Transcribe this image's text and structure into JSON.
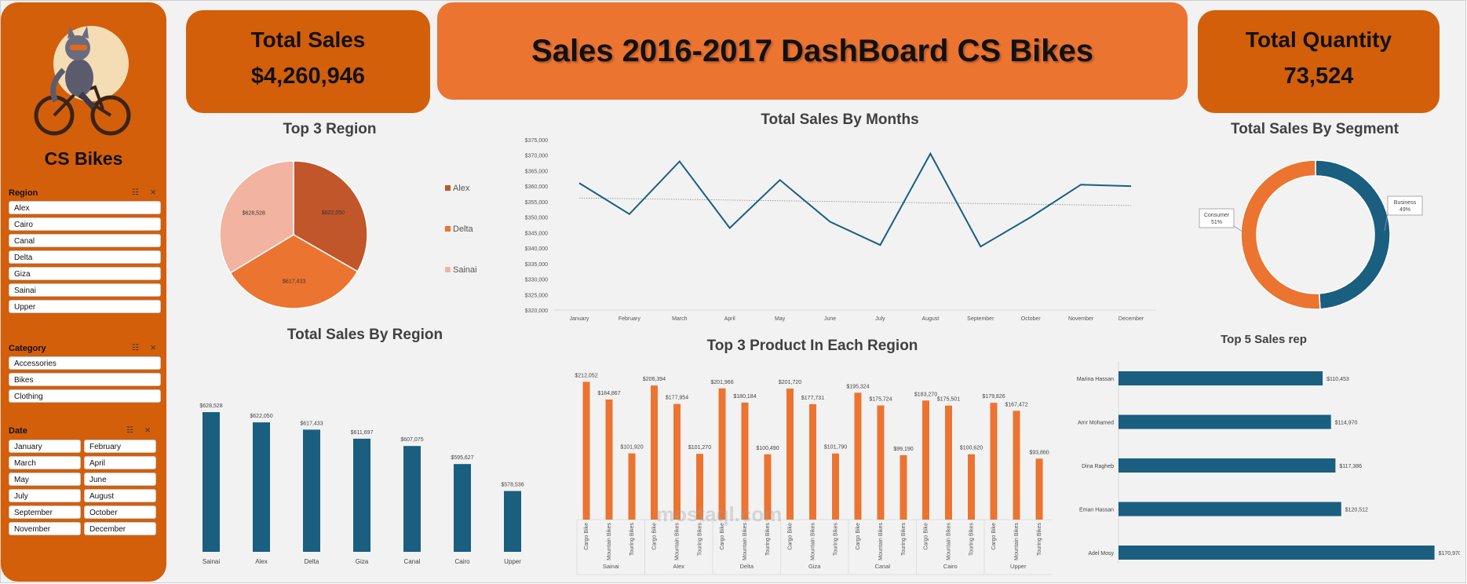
{
  "dashboard": {
    "title": "Sales 2016-2017 DashBoard CS Bikes",
    "brand": "CS Bikes",
    "watermark": "mostaql.com"
  },
  "kpis": {
    "total_sales_label": "Total Sales",
    "total_sales_value": "$4,260,946",
    "total_quantity_label": "Total Quantity",
    "total_quantity_value": "73,524"
  },
  "slicers": {
    "region": {
      "title": "Region",
      "items": [
        "Alex",
        "Cairo",
        "Canal",
        "Delta",
        "Giza",
        "Sainai",
        "Upper"
      ]
    },
    "category": {
      "title": "Category",
      "items": [
        "Accessories",
        "Bikes",
        "Clothing"
      ]
    },
    "date": {
      "title": "Date",
      "items": [
        "January",
        "February",
        "March",
        "April",
        "May",
        "June",
        "July",
        "August",
        "September",
        "October",
        "November",
        "December"
      ]
    }
  },
  "colors": {
    "orange": "#d35f0a",
    "accent": "#ec7431",
    "blue": "#1a5e80"
  },
  "chart_data": [
    {
      "id": "top3-region",
      "type": "pie",
      "title": "Top 3 Region",
      "categories": [
        "Alex",
        "Delta",
        "Sainai"
      ],
      "values": [
        622050,
        617433,
        628528
      ],
      "labels": [
        "$622,050",
        "$617,433",
        "$628,528"
      ],
      "colors": [
        "#c0562a",
        "#ec7431",
        "#f2b3a0"
      ],
      "legend": "right"
    },
    {
      "id": "sales-by-months",
      "type": "line",
      "title": "Total Sales By Months",
      "categories": [
        "January",
        "February",
        "March",
        "April",
        "May",
        "June",
        "July",
        "August",
        "September",
        "October",
        "November",
        "December"
      ],
      "values": [
        361000,
        351000,
        368000,
        346500,
        362000,
        348500,
        341000,
        370500,
        340500,
        350000,
        360500,
        360000
      ],
      "trendline": true,
      "ylim": [
        320000,
        375000
      ],
      "yticks": [
        "$320,000",
        "$325,000",
        "$330,000",
        "$335,000",
        "$340,000",
        "$345,000",
        "$350,000",
        "$355,000",
        "$360,000",
        "$365,000",
        "$370,000",
        "$375,000"
      ],
      "color": "#1a5e80"
    },
    {
      "id": "sales-by-segment",
      "type": "pie",
      "title": "Total Sales By Segment",
      "categories": [
        "Business",
        "Consumer"
      ],
      "values": [
        49,
        51
      ],
      "labels": [
        "Business\n49%",
        "Consumer\n51%"
      ],
      "colors": [
        "#1a5e80",
        "#ec7431"
      ]
    },
    {
      "id": "sales-by-region",
      "type": "bar",
      "title": "Total Sales By Region",
      "categories": [
        "Sainai",
        "Alex",
        "Delta",
        "Giza",
        "Canal",
        "Cairo",
        "Upper"
      ],
      "values": [
        628528,
        622050,
        617433,
        611697,
        607075,
        595627,
        578536
      ],
      "labels": [
        "$628,528",
        "$622,050",
        "$617,433",
        "$611,697",
        "$607,075",
        "$595,627",
        "$578,536"
      ],
      "ylim": [
        540000,
        640000
      ],
      "color": "#1a5e80"
    },
    {
      "id": "top3-product",
      "type": "bar",
      "title": "Top 3 Product In Each Region",
      "products": [
        "Cargo Bike",
        "Mountain Bikes",
        "Touring Bikes"
      ],
      "groups": [
        {
          "region": "Sainai",
          "values": [
            212052,
            184867,
            101920
          ],
          "labels": [
            "$212,052",
            "$184,867",
            "$101,920"
          ]
        },
        {
          "region": "Alex",
          "values": [
            206394,
            177954,
            101270
          ],
          "labels": [
            "$206,394",
            "$177,954",
            "$101,270"
          ]
        },
        {
          "region": "Delta",
          "values": [
            201966,
            180184,
            100490
          ],
          "labels": [
            "$201,966",
            "$180,184",
            "$100,490"
          ]
        },
        {
          "region": "Giza",
          "values": [
            201720,
            177731,
            101790
          ],
          "labels": [
            "$201,720",
            "$177,731",
            "$101,790"
          ]
        },
        {
          "region": "Canal",
          "values": [
            195324,
            175724,
            99190
          ],
          "labels": [
            "$195,324",
            "$175,724",
            "$99,190"
          ]
        },
        {
          "region": "Cairo",
          "values": [
            183270,
            175501,
            100620
          ],
          "labels": [
            "$183,270",
            "$175,501",
            "$100,620"
          ]
        },
        {
          "region": "Upper",
          "values": [
            179826,
            167472,
            93860
          ],
          "labels": [
            "$179,826",
            "$167,472",
            "$93,860"
          ]
        }
      ],
      "color": "#ec7431"
    },
    {
      "id": "top5-sales-rep",
      "type": "bar",
      "orientation": "horizontal",
      "title": "Top 5 Sales rep",
      "categories": [
        "Marina Hassan",
        "Amr Mohamed",
        "Dina Ragheb",
        "Eman Hassan",
        "Adel Mosy"
      ],
      "values": [
        110453,
        114970,
        117386,
        120512,
        170970
      ],
      "labels": [
        "$110,453",
        "$114,970",
        "$117,386",
        "$120,512",
        "$170,970"
      ],
      "xlim": [
        0,
        172000
      ],
      "color": "#1a5e80"
    }
  ]
}
